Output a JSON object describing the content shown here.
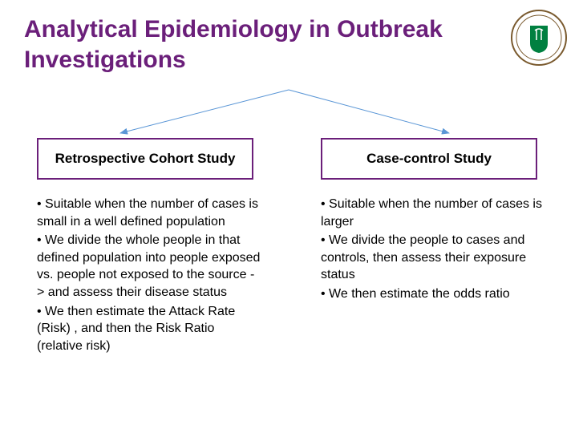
{
  "title": {
    "text": "Analytical Epidemiology in Outbreak Investigations",
    "color": "#6b1f7a",
    "fontsize": 30
  },
  "logo": {
    "shield_fill": "#008040",
    "ring_stroke": "#7a5a2e"
  },
  "arrows": {
    "stroke": "#5a96d6",
    "stroke_width": 1
  },
  "boxes": {
    "border_color": "#6b1f7a",
    "left": {
      "label": "Retrospective Cohort Study"
    },
    "right": {
      "label": "Case-control Study"
    }
  },
  "bullets": {
    "color": "#000000",
    "left": [
      "• Suitable when the number of cases is small in a well defined population",
      "• We divide the whole people in that defined population into people exposed vs. people not exposed to the source -> and assess their disease status",
      "• We then estimate the Attack Rate (Risk) , and then the Risk Ratio (relative risk)"
    ],
    "right": [
      "• Suitable when the number of cases is larger",
      "• We divide the people to cases and controls, then assess their exposure status",
      "• We then estimate the odds ratio"
    ]
  }
}
